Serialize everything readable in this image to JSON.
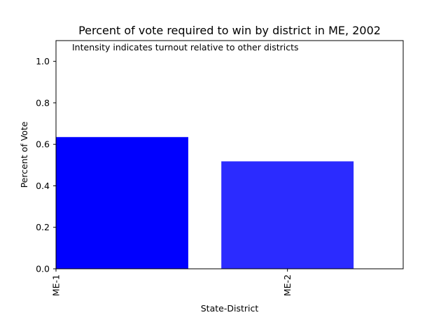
{
  "chart_data": {
    "type": "bar",
    "title": "Percent of vote required to win by district in ME, 2002",
    "annotation": "Intensity indicates turnout relative to other districts",
    "xlabel": "State-District",
    "ylabel": "Percent of Vote",
    "categories": [
      "ME-1",
      "ME-2"
    ],
    "values": [
      0.635,
      0.518
    ],
    "bar_colors": [
      "#0000ff",
      "#2b2bff"
    ],
    "ylim": [
      0,
      1.1
    ],
    "yticks": [
      0.0,
      0.2,
      0.4,
      0.6,
      0.8,
      1.0
    ],
    "ytick_labels": [
      "0.0",
      "0.2",
      "0.4",
      "0.6",
      "0.8",
      "1.0"
    ],
    "grid": false
  }
}
